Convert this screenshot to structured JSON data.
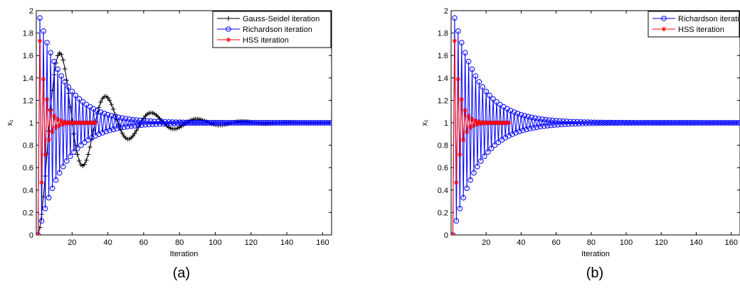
{
  "chart_data": [
    {
      "type": "line",
      "caption": "(a)",
      "xlabel": "Iteration",
      "ylabel": "x₁",
      "xlim": [
        0,
        165
      ],
      "ylim": [
        0,
        2
      ],
      "xticks": [
        "20",
        "40",
        "60",
        "80",
        "100",
        "120",
        "140",
        "160"
      ],
      "yticks": [
        "0",
        "0.2",
        "0.4",
        "0.6",
        "0.8",
        "1",
        "1.2",
        "1.4",
        "1.6",
        "1.8",
        "2"
      ],
      "legend_position": "top-right",
      "series": [
        {
          "name": "Gauss-Seidel iteration",
          "color": "#000000",
          "marker": "plus",
          "model": {
            "kind": "damped-cosine",
            "amplitude": 1.0,
            "decay_per_iter": 0.038,
            "period": 25.5,
            "start": 1,
            "end": 165,
            "step": 1
          }
        },
        {
          "name": "Richardson iteration",
          "color": "#0000ff",
          "marker": "circle",
          "model": {
            "kind": "alternating",
            "amplitude": 1.0,
            "ratio": 0.935,
            "start": 1,
            "end": 165,
            "step": 1
          }
        },
        {
          "name": "HSS iteration",
          "color": "#ff0000",
          "marker": "star",
          "model": {
            "kind": "alternating",
            "amplitude": 1.0,
            "ratio": 0.73,
            "start": 1,
            "end": 33,
            "step": 1
          }
        }
      ]
    },
    {
      "type": "line",
      "caption": "(b)",
      "xlabel": "Iteration",
      "ylabel": "x₁",
      "xlim": [
        0,
        165
      ],
      "ylim": [
        0,
        2
      ],
      "xticks": [
        "20",
        "40",
        "60",
        "80",
        "100",
        "120",
        "140",
        "160"
      ],
      "yticks": [
        "0",
        "0.2",
        "0.4",
        "0.6",
        "0.8",
        "1",
        "1.2",
        "1.4",
        "1.6",
        "1.8",
        "2"
      ],
      "legend_position": "top-right",
      "series": [
        {
          "name": "Richardson iteration",
          "color": "#0000ff",
          "marker": "circle",
          "model": {
            "kind": "alternating",
            "amplitude": 1.0,
            "ratio": 0.935,
            "start": 1,
            "end": 165,
            "step": 1
          }
        },
        {
          "name": "HSS iteration",
          "color": "#ff0000",
          "marker": "star",
          "model": {
            "kind": "alternating",
            "amplitude": 1.0,
            "ratio": 0.73,
            "start": 1,
            "end": 33,
            "step": 1
          }
        }
      ]
    }
  ]
}
